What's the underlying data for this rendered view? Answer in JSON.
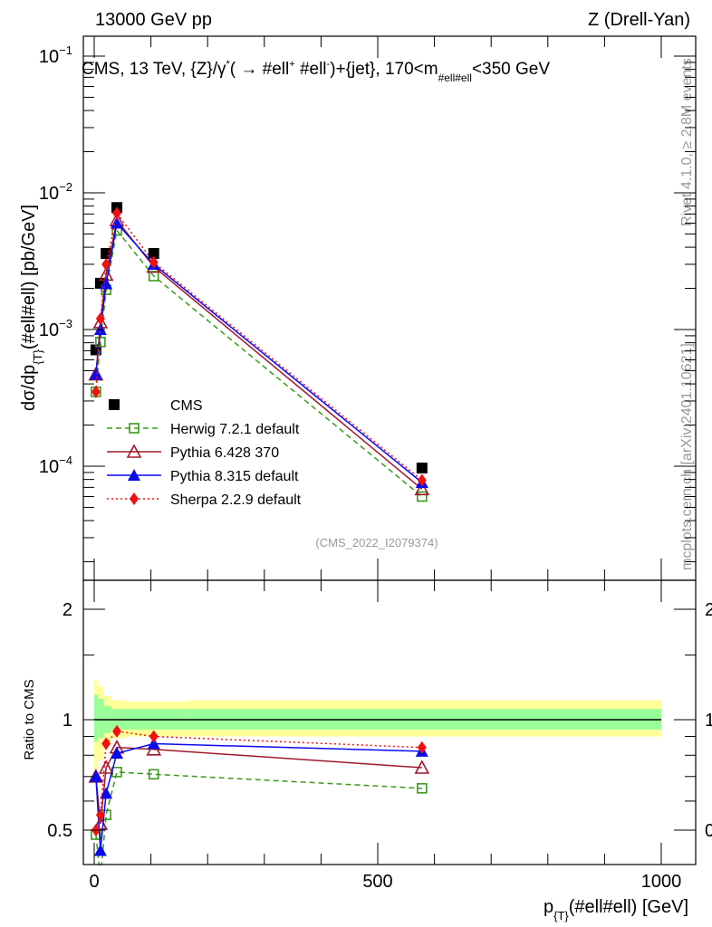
{
  "header": {
    "left": "13000 GeV pp",
    "right": "Z (Drell-Yan)"
  },
  "side_texts": {
    "rivet": "Rivet 4.1.0, ≥ 2.8M events",
    "mcplots": "mcplots.cern.ch [arXiv:2401.10621]"
  },
  "chart_data": [
    {
      "type": "line",
      "panel": "main",
      "title_parts": {
        "a": "CMS, 13 TeV, {Z}/γ",
        "a_sup": "*",
        "b": "( →  #ell",
        "b_sup": "+",
        "c": " #ell",
        "c_sup": "-",
        "d": ")+{jet}, 170<m",
        "d_sub": "#ell#ell",
        "e": "<350 GeV"
      },
      "ylabel": "dσ/dp_{T}(#ell#ell) [pb/GeV]",
      "ylabel_parts": {
        "a": "dσ/dp",
        "a_sub": "{T}",
        "b": "(#ell#ell) [pb/GeV]"
      },
      "yscale": "log",
      "ylim": [
        0.000148,
        0.141
      ],
      "xlim": [
        -20,
        1060
      ],
      "y_ticks": [
        {
          "value": 0.1,
          "base": "10",
          "exp": "−1"
        },
        {
          "value": 0.01,
          "base": "10",
          "exp": "−2"
        },
        {
          "value": 0.001,
          "base": "10",
          "exp": "−3"
        },
        {
          "value": 0.0001,
          "base": "10",
          "exp": "−4"
        }
      ],
      "x": [
        3,
        11,
        21,
        40,
        105,
        578
      ],
      "series": [
        {
          "name": "CMS",
          "color": "#000000",
          "marker": "square-filled",
          "line": "none",
          "values": [
            0.00071,
            0.00218,
            0.0036,
            0.0078,
            0.0036,
            9.7e-05
          ]
        },
        {
          "name": "Herwig 7.2.1 default",
          "color": "#3a9a1a",
          "marker": "square-open",
          "line": "dashed",
          "values": [
            0.00035,
            0.00081,
            0.00195,
            0.0053,
            0.00246,
            6e-05
          ]
        },
        {
          "name": "Pythia 6.428 370",
          "color": "#a0182c",
          "marker": "triangle-open",
          "line": "solid",
          "values": [
            0.00047,
            0.00113,
            0.00252,
            0.0063,
            0.00288,
            6.8e-05
          ]
        },
        {
          "name": "Pythia 8.315 default",
          "color": "#0a0aee",
          "marker": "triangle-filled",
          "line": "solid",
          "values": [
            0.00047,
            0.001,
            0.00216,
            0.006,
            0.003,
            7.6e-05
          ]
        },
        {
          "name": "Sherpa 2.2.9 default",
          "color": "#f01010",
          "marker": "diamond-filled",
          "line": "dotted",
          "values": [
            0.00035,
            0.0012,
            0.003,
            0.0071,
            0.0031,
            7.9e-05
          ]
        }
      ],
      "legend_position": "lower-left",
      "annotation": "(CMS_2022_I2079374)"
    },
    {
      "type": "line",
      "panel": "ratio",
      "ylabel": "Ratio to CMS",
      "xlabel_parts": {
        "a": "p",
        "a_sub": "{T}",
        "b": "(#ell#ell) [GeV]"
      },
      "yscale": "log",
      "ylim": [
        0.403,
        2.48
      ],
      "xlim": [
        -20,
        1060
      ],
      "y_ticks": [
        {
          "value": 0.5,
          "label": "0.5"
        },
        {
          "value": 1,
          "label": "1"
        },
        {
          "value": 2,
          "label": "2"
        }
      ],
      "x_ticks": [
        {
          "value": 0,
          "label": "0"
        },
        {
          "value": 500,
          "label": "500"
        },
        {
          "value": 1000,
          "label": "1000"
        }
      ],
      "x": [
        3,
        11,
        21,
        40,
        105,
        578
      ],
      "bands": {
        "edges": [
          0,
          7,
          16,
          30,
          55,
          165,
          1000
        ],
        "yellow": [
          [
            0.73,
            1.28
          ],
          [
            0.78,
            1.23
          ],
          [
            0.86,
            1.16
          ],
          [
            0.89,
            1.13
          ],
          [
            0.9,
            1.12
          ],
          [
            0.9,
            1.13
          ]
        ],
        "green": [
          [
            0.87,
            1.17
          ],
          [
            0.89,
            1.14
          ],
          [
            0.92,
            1.09
          ],
          [
            0.94,
            1.07
          ],
          [
            0.94,
            1.07
          ],
          [
            0.94,
            1.07
          ]
        ],
        "yellow_color": "#ffff99",
        "green_color": "#99ff99"
      },
      "series": [
        {
          "name": "Herwig 7.2.1 default",
          "color": "#3a9a1a",
          "marker": "square-open",
          "line": "dashed",
          "values": [
            0.486,
            0.37,
            0.55,
            0.72,
            0.71,
            0.65
          ]
        },
        {
          "name": "Pythia 6.428 370",
          "color": "#a0182c",
          "marker": "triangle-open",
          "line": "solid",
          "values": [
            0.7,
            0.52,
            0.74,
            0.84,
            0.83,
            0.74
          ]
        },
        {
          "name": "Pythia 8.315 default",
          "color": "#0a0aee",
          "marker": "triangle-filled",
          "line": "solid",
          "values": [
            0.7,
            0.44,
            0.63,
            0.81,
            0.86,
            0.82
          ]
        },
        {
          "name": "Sherpa 2.2.9 default",
          "color": "#f01010",
          "marker": "diamond-filled",
          "line": "dotted",
          "values": [
            0.5,
            0.55,
            0.86,
            0.93,
            0.9,
            0.84
          ]
        }
      ]
    }
  ]
}
